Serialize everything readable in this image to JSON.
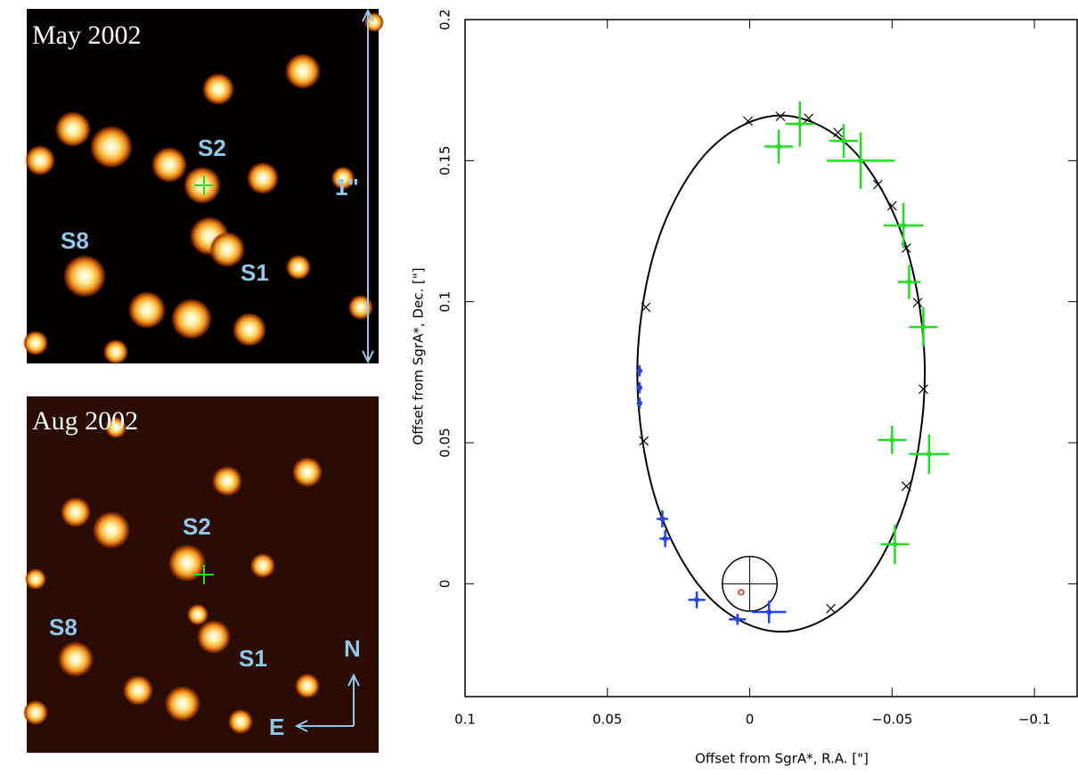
{
  "image_panels": [
    {
      "title": "May 2002",
      "labels": [
        "S2",
        "S8",
        "S1",
        "1\""
      ]
    },
    {
      "title": "Aug 2002",
      "labels": [
        "S2",
        "S8",
        "S1",
        "N",
        "E"
      ]
    }
  ],
  "chart_data": {
    "type": "scatter",
    "x_label": "Offset from SgrA*, R.A. [\"]",
    "y_label": "Offset from SgrA*, Dec. [\"]",
    "xlim": [
      0.1,
      -0.115
    ],
    "ylim": [
      -0.04,
      0.2
    ],
    "xticks": [
      0.1,
      0.05,
      0,
      {
        "value": -0.05,
        "label": "−0.05"
      },
      {
        "value": -0.1,
        "label": "−0.1"
      }
    ],
    "yticks": [
      0,
      0.05,
      0.1,
      0.15,
      0.2
    ],
    "series": [
      {
        "type": "line",
        "color": "#000000",
        "x": [
          0.0395,
          0.0327,
          0.0143,
          -0.011,
          -0.0363,
          -0.0547,
          -0.0615,
          -0.0547,
          -0.0363,
          -0.011,
          0.0143,
          0.0327,
          0.0395
        ],
        "y": [
          0.0745,
          0.1203,
          0.1537,
          0.166,
          0.1537,
          0.1203,
          0.0745,
          0.0287,
          -0.0047,
          -0.017,
          -0.0047,
          0.0287,
          0.0745
        ]
      },
      {
        "type": "scatter",
        "color": "#000000",
        "x": [
          0.0006,
          -0.0108,
          -0.0207,
          -0.031,
          -0.045,
          -0.05,
          -0.055,
          -0.059,
          -0.061,
          -0.055,
          -0.0285,
          0.0372,
          0.0365
        ],
        "y": [
          0.164,
          0.1657,
          0.165,
          0.16,
          0.1415,
          0.134,
          0.119,
          0.0997,
          0.069,
          0.0346,
          -0.0088,
          0.0506,
          0.098
        ]
      },
      {
        "type": "errorbar",
        "color": "#22dd22",
        "x": [
          -0.0102,
          -0.0176,
          -0.033,
          -0.039,
          -0.054,
          -0.056,
          -0.061,
          -0.05,
          -0.063,
          -0.051
        ],
        "y": [
          0.155,
          0.163,
          0.157,
          0.15,
          0.127,
          0.107,
          0.091,
          0.051,
          0.046,
          0.014
        ],
        "xerr": [
          0.005,
          0.005,
          0.005,
          0.012,
          0.007,
          0.004,
          0.005,
          0.005,
          0.007,
          0.005
        ],
        "yerr": [
          0.006,
          0.008,
          0.006,
          0.01,
          0.008,
          0.006,
          0.007,
          0.005,
          0.007,
          0.007
        ]
      },
      {
        "type": "errorbar",
        "color": "#2244ee",
        "x": [
          0.0387,
          0.0387,
          0.0387,
          0.0307,
          0.0297,
          0.0186,
          0.0043,
          -0.0068
        ],
        "y": [
          0.0755,
          0.0695,
          0.064,
          0.023,
          0.016,
          -0.0057,
          -0.0126,
          -0.01
        ],
        "xerr": [
          0.001,
          0.001,
          0.001,
          0.002,
          0.002,
          0.003,
          0.003,
          0.006
        ],
        "yerr": [
          0.002,
          0.002,
          0.002,
          0.003,
          0.003,
          0.003,
          0.002,
          0.004
        ]
      }
    ],
    "sgra_marker": {
      "x": 0,
      "y": 0,
      "radius": 0.0097
    },
    "sgra_dot": {
      "x": 0.003,
      "y": -0.003,
      "radius": 0.0009,
      "color": "#ee2222"
    }
  }
}
